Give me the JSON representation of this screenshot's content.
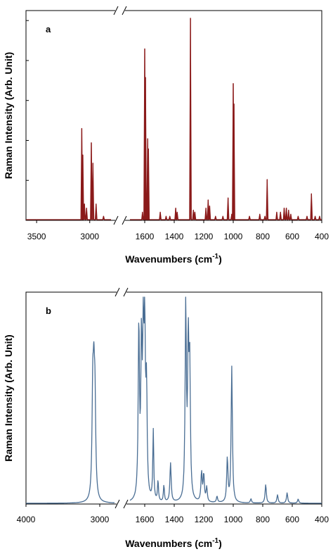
{
  "figure": {
    "panels": [
      "a",
      "b"
    ]
  },
  "chart_data": [
    {
      "type": "line",
      "panel_label": "a",
      "xlabel": "Wavenumbers (cm",
      "xlabel_sup": "-1",
      "xlabel_close": ")",
      "ylabel": "Raman Intensity (Arb. Unit)",
      "x_reversed": true,
      "axis_break": "between 2800 and 1700",
      "segments": [
        {
          "xlim": [
            3600,
            2800
          ],
          "ticks": [
            3500,
            3000
          ]
        },
        {
          "xlim": [
            1700,
            400
          ],
          "ticks": [
            1600,
            1400,
            1200,
            1000,
            800,
            600,
            400
          ]
        }
      ],
      "ylim": [
        0,
        1.0
      ],
      "y_tick_marks": 5,
      "tick_labels": [
        "3500",
        "3000",
        "1600",
        "1400",
        "1200",
        "1000",
        "800",
        "600",
        "400"
      ],
      "series": [
        {
          "style": "sticks",
          "color": "#8b1a1a",
          "peaks": [
            [
              3075,
              0.45
            ],
            [
              3065,
              0.32
            ],
            [
              3050,
              0.08
            ],
            [
              3030,
              0.06
            ],
            [
              2985,
              0.38
            ],
            [
              2970,
              0.28
            ],
            [
              2940,
              0.08
            ],
            [
              2870,
              0.02
            ],
            [
              1615,
              0.04
            ],
            [
              1600,
              0.84
            ],
            [
              1595,
              0.7
            ],
            [
              1580,
              0.4
            ],
            [
              1575,
              0.35
            ],
            [
              1495,
              0.04
            ],
            [
              1455,
              0.02
            ],
            [
              1430,
              0.02
            ],
            [
              1390,
              0.06
            ],
            [
              1380,
              0.04
            ],
            [
              1290,
              0.99
            ],
            [
              1270,
              0.05
            ],
            [
              1260,
              0.04
            ],
            [
              1185,
              0.06
            ],
            [
              1170,
              0.1
            ],
            [
              1160,
              0.07
            ],
            [
              1120,
              0.02
            ],
            [
              1070,
              0.02
            ],
            [
              1035,
              0.11
            ],
            [
              1010,
              0.03
            ],
            [
              1000,
              0.67
            ],
            [
              995,
              0.57
            ],
            [
              890,
              0.02
            ],
            [
              820,
              0.03
            ],
            [
              785,
              0.02
            ],
            [
              770,
              0.2
            ],
            [
              705,
              0.04
            ],
            [
              680,
              0.04
            ],
            [
              655,
              0.06
            ],
            [
              640,
              0.06
            ],
            [
              625,
              0.05
            ],
            [
              610,
              0.03
            ],
            [
              560,
              0.02
            ],
            [
              500,
              0.02
            ],
            [
              470,
              0.13
            ],
            [
              445,
              0.02
            ],
            [
              415,
              0.02
            ]
          ]
        }
      ]
    },
    {
      "type": "line",
      "panel_label": "b",
      "xlabel": "Wavenumbers (cm",
      "xlabel_sup": "-1",
      "xlabel_close": ")",
      "ylabel": "Raman Intensity (Arb. Unit)",
      "x_reversed": true,
      "axis_break": "between 2800 and 1700",
      "segments": [
        {
          "xlim": [
            4000,
            2800
          ],
          "ticks": [
            4000,
            3000
          ]
        },
        {
          "xlim": [
            1700,
            400
          ],
          "ticks": [
            1600,
            1400,
            1200,
            1000,
            800,
            600,
            400
          ]
        }
      ],
      "ylim": [
        0,
        1.0
      ],
      "tick_labels": [
        "4000",
        "3000",
        "1600",
        "1400",
        "1200",
        "1000",
        "800",
        "600",
        "400"
      ],
      "series": [
        {
          "style": "lorentzian",
          "color": "#4a6e94",
          "peaks": [
            [
              3095,
              0.46,
              12
            ],
            [
              3080,
              0.44,
              12
            ],
            [
              3065,
              0.42,
              12
            ],
            [
              1640,
              0.84,
              5
            ],
            [
              1622,
              0.7,
              5
            ],
            [
              1610,
              0.7,
              5
            ],
            [
              1600,
              0.78,
              5
            ],
            [
              1588,
              0.5,
              5
            ],
            [
              1542,
              0.34,
              4
            ],
            [
              1510,
              0.1,
              4
            ],
            [
              1470,
              0.08,
              4
            ],
            [
              1425,
              0.19,
              5
            ],
            [
              1322,
              0.93,
              5
            ],
            [
              1305,
              0.72,
              5
            ],
            [
              1295,
              0.62,
              5
            ],
            [
              1215,
              0.14,
              5
            ],
            [
              1200,
              0.13,
              5
            ],
            [
              1180,
              0.07,
              5
            ],
            [
              1110,
              0.03,
              5
            ],
            [
              1040,
              0.21,
              5
            ],
            [
              1010,
              0.66,
              5
            ],
            [
              880,
              0.02,
              5
            ],
            [
              780,
              0.09,
              5
            ],
            [
              700,
              0.04,
              5
            ],
            [
              635,
              0.05,
              5
            ],
            [
              560,
              0.02,
              5
            ]
          ]
        }
      ]
    }
  ]
}
